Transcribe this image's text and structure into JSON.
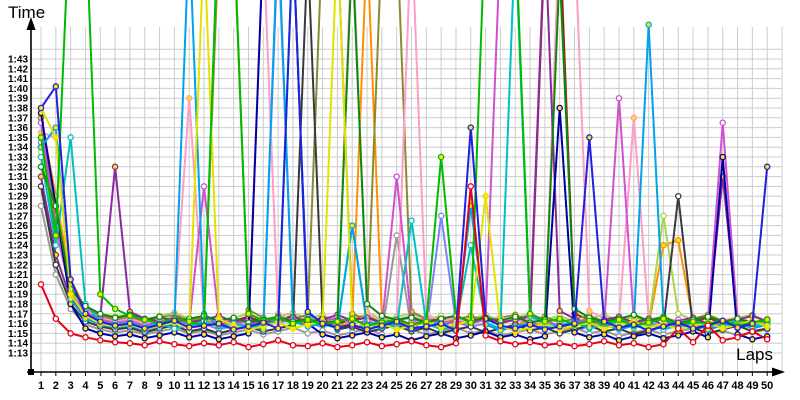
{
  "chart_data": {
    "type": "line",
    "title": "Time",
    "xlabel": "Laps",
    "grid": true,
    "background_color": "#ffffff",
    "grid_color": "#cccccc",
    "axis_color": "#000000",
    "ylim_seconds": [
      71,
      106.7
    ],
    "xticks": [
      "1",
      "2",
      "3",
      "4",
      "5",
      "6",
      "7",
      "8",
      "9",
      "10",
      "11",
      "12",
      "13",
      "14",
      "15",
      "16",
      "17",
      "18",
      "19",
      "20",
      "21",
      "22",
      "23",
      "24",
      "25",
      "26",
      "27",
      "28",
      "29",
      "30",
      "31",
      "32",
      "33",
      "34",
      "35",
      "36",
      "37",
      "38",
      "39",
      "40",
      "41",
      "42",
      "43",
      "44",
      "45",
      "46",
      "47",
      "48",
      "49",
      "50"
    ],
    "yticks": [
      "1:13",
      "1:14",
      "1:15",
      "1:16",
      "1:17",
      "1:18",
      "1:19",
      "1:20",
      "1:21",
      "1:22",
      "1:23",
      "1:24",
      "1:25",
      "1:26",
      "1:27",
      "1:28",
      "1:29",
      "1:30",
      "1:31",
      "1:32",
      "1:33",
      "1:34",
      "1:35",
      "1:36",
      "1:37",
      "1:38",
      "1:39",
      "1:40",
      "1:41",
      "1:42",
      "1:43"
    ],
    "series": [
      {
        "name": "maroon",
        "color": "#a51a1a",
        "marker_fill": "#ffe600",
        "values": [
          94.0,
          87.5,
          79.8,
          77.2,
          76.7,
          76.3,
          76.6,
          76.1,
          76.5,
          76.8,
          76.2,
          76.5,
          76.0,
          76.3,
          76.7,
          76.1,
          76.4,
          76.8,
          76.2,
          76.6,
          76.0,
          76.4,
          76.7,
          76.1,
          76.5,
          75.9,
          76.3,
          76.6,
          76.0,
          76.4,
          76.8,
          76.2,
          76.5,
          75.9,
          115.0,
          116.0,
          77.0,
          76.4,
          76.0,
          76.3,
          76.7,
          76.1,
          76.5,
          75.9,
          76.2,
          76.6,
          76.0,
          76.4,
          76.8,
          76.2
        ]
      },
      {
        "name": "periwinkle",
        "color": "#8080f8",
        "marker_fill": "#ffffff",
        "values": [
          94.5,
          86.5,
          78.8,
          76.6,
          76.1,
          75.8,
          76.0,
          75.5,
          75.9,
          76.2,
          75.6,
          76.0,
          75.4,
          75.8,
          76.1,
          75.6,
          115.0,
          76.8,
          76.0,
          75.7,
          76.1,
          75.5,
          75.9,
          76.2,
          75.6,
          76.0,
          75.3,
          87.0,
          76.1,
          75.7,
          76.0,
          75.4,
          75.8,
          76.2,
          75.6,
          75.9,
          75.3,
          75.7,
          76.1,
          75.5,
          75.8,
          76.2,
          75.6,
          76.0,
          75.4,
          75.7,
          76.1,
          75.5,
          75.9,
          76.2
        ]
      },
      {
        "name": "orange",
        "color": "#ff9000",
        "marker_fill": "#ffe600",
        "values": [
          97.0,
          89.0,
          80.5,
          77.5,
          76.5,
          76.1,
          76.3,
          75.9,
          76.2,
          76.5,
          76.0,
          76.3,
          75.8,
          76.1,
          76.4,
          75.9,
          76.2,
          76.6,
          76.0,
          76.3,
          75.7,
          76.1,
          115.0,
          76.8,
          76.2,
          75.8,
          76.1,
          76.4,
          75.9,
          76.2,
          76.6,
          76.0,
          76.4,
          75.8,
          76.1,
          76.5,
          75.9,
          76.2,
          75.6,
          76.0,
          76.3,
          75.8,
          84.0,
          84.5,
          76.2,
          75.7,
          76.0,
          76.4,
          75.8,
          76.1
        ]
      },
      {
        "name": "gray",
        "color": "#999999",
        "marker_fill": "#ffffff",
        "values": [
          88.0,
          81.0,
          77.5,
          75.9,
          75.4,
          75.1,
          75.3,
          74.9,
          75.2,
          75.5,
          75.0,
          75.3,
          74.8,
          75.1,
          75.4,
          74.9,
          75.2,
          75.6,
          75.0,
          75.3,
          74.8,
          75.1,
          75.5,
          74.9,
          85.0,
          75.4,
          74.9,
          75.2,
          75.6,
          75.0,
          75.3,
          74.8,
          75.1,
          75.4,
          74.9,
          75.2,
          75.6,
          75.0,
          75.3,
          74.7,
          75.1,
          75.4,
          74.9,
          75.2,
          75.5,
          75.0,
          75.3,
          74.8,
          75.1,
          75.4
        ]
      },
      {
        "name": "yellowgreen",
        "color": "#aad44a",
        "marker_fill": "#ffffff",
        "values": [
          93.5,
          85.5,
          79.2,
          77.6,
          77.0,
          76.7,
          76.9,
          76.4,
          76.8,
          77.1,
          76.5,
          76.8,
          76.3,
          76.6,
          77.0,
          76.4,
          76.7,
          77.1,
          76.5,
          76.9,
          76.2,
          76.6,
          76.9,
          76.3,
          76.7,
          77.0,
          76.4,
          76.8,
          76.1,
          76.5,
          76.9,
          76.3,
          76.6,
          77.0,
          76.4,
          76.8,
          76.2,
          76.5,
          76.9,
          76.3,
          76.7,
          76.0,
          87.0,
          77.0,
          76.4,
          76.8,
          76.2,
          76.6,
          76.9,
          76.3
        ]
      },
      {
        "name": "olive",
        "color": "#8a8a32",
        "marker_fill": "#ffe600",
        "values": [
          97.0,
          87.0,
          80.0,
          77.6,
          76.8,
          76.4,
          76.7,
          76.2,
          76.6,
          76.9,
          76.3,
          76.6,
          115.0,
          116.0,
          77.4,
          76.6,
          76.2,
          76.5,
          76.9,
          116.0,
          115.5,
          77.0,
          76.4,
          115.0,
          116.5,
          77.2,
          76.5,
          76.1,
          76.4,
          76.8,
          76.2,
          76.6,
          76.9,
          76.3,
          76.7,
          76.1,
          76.5,
          76.8,
          76.2,
          76.6,
          76.0,
          76.4,
          76.7,
          76.1,
          76.5,
          76.9,
          76.3,
          76.6,
          76.0,
          76.4
        ]
      },
      {
        "name": "pink",
        "color": "#ff9cc8",
        "marker_fill": "#ffe600",
        "values": [
          95.5,
          95.0,
          80.0,
          77.4,
          76.6,
          76.2,
          76.5,
          76.0,
          76.4,
          76.8,
          99.0,
          76.5,
          76.1,
          76.4,
          75.9,
          115.0,
          77.0,
          76.3,
          76.6,
          76.1,
          76.4,
          116.0,
          77.2,
          76.4,
          76.0,
          116.5,
          77.0,
          76.2,
          76.6,
          76.0,
          76.4,
          76.7,
          76.1,
          76.5,
          75.9,
          117.0,
          116.0,
          77.3,
          76.5,
          76.1,
          97.0,
          76.4,
          75.8,
          76.2,
          76.6,
          76.0,
          76.3,
          76.7,
          76.1,
          76.5
        ]
      },
      {
        "name": "purple",
        "color": "#8a2aa0",
        "marker_fill": "#ffe600",
        "values": [
          91.0,
          83.0,
          78.5,
          77.0,
          76.6,
          92.0,
          77.2,
          76.5,
          76.2,
          76.6,
          76.1,
          76.4,
          76.8,
          76.2,
          76.5,
          76.0,
          76.3,
          76.7,
          76.1,
          76.4,
          76.9,
          76.3,
          76.6,
          76.0,
          76.4,
          76.7,
          76.1,
          76.5,
          76.8,
          76.2,
          76.6,
          76.1,
          76.4,
          76.8,
          116.0,
          77.3,
          76.5,
          76.0,
          76.4,
          76.7,
          76.1,
          76.5,
          75.9,
          76.3,
          76.6,
          76.0,
          91.0,
          76.4,
          76.8,
          76.2
        ]
      },
      {
        "name": "violet",
        "color": "#d050d0",
        "marker_fill": "#ffffff",
        "values": [
          96.5,
          86.0,
          79.0,
          77.2,
          76.4,
          76.1,
          76.3,
          75.8,
          76.2,
          76.5,
          75.9,
          90.0,
          76.4,
          76.0,
          76.3,
          75.7,
          76.1,
          76.4,
          75.8,
          76.2,
          76.6,
          76.0,
          76.3,
          75.7,
          91.0,
          76.2,
          76.5,
          75.9,
          76.2,
          76.0,
          76.4,
          115.0,
          116.0,
          77.0,
          76.3,
          75.8,
          76.1,
          76.5,
          75.9,
          99.0,
          76.2,
          75.6,
          76.0,
          76.4,
          75.8,
          76.1,
          96.5,
          76.3,
          75.7,
          76.0
        ]
      },
      {
        "name": "black",
        "color": "#3a3a3a",
        "marker_fill": "#ffffff",
        "values": [
          90.0,
          82.0,
          78.0,
          76.2,
          75.7,
          75.4,
          75.6,
          75.1,
          75.5,
          75.8,
          75.2,
          75.5,
          75.0,
          75.4,
          75.7,
          75.2,
          75.5,
          75.9,
          114.0,
          76.5,
          75.4,
          75.7,
          75.1,
          75.5,
          75.8,
          75.2,
          75.6,
          75.0,
          75.4,
          75.7,
          75.1,
          75.5,
          75.9,
          75.3,
          75.6,
          75.0,
          75.4,
          75.8,
          75.2,
          75.5,
          74.9,
          75.3,
          75.7,
          89.0,
          75.6,
          75.0,
          75.4,
          75.8,
          75.2,
          75.5
        ]
      },
      {
        "name": "navy",
        "color": "#0000a0",
        "marker_fill": "#ffe600",
        "values": [
          97.5,
          88.0,
          78.0,
          75.5,
          75.0,
          74.7,
          74.9,
          74.5,
          74.8,
          75.1,
          74.6,
          74.9,
          74.4,
          74.7,
          75.0,
          115.0,
          116.0,
          115.5,
          76.0,
          74.9,
          74.5,
          74.8,
          75.1,
          74.6,
          74.9,
          74.3,
          74.7,
          75.0,
          74.5,
          74.8,
          75.2,
          74.6,
          74.9,
          74.4,
          74.7,
          98.0,
          75.1,
          74.6,
          74.9,
          74.3,
          74.7,
          75.0,
          74.5,
          74.8,
          75.2,
          74.6,
          93.0,
          74.9,
          74.4,
          74.7
        ]
      },
      {
        "name": "teal",
        "color": "#00c0c0",
        "marker_fill": "#ffffff",
        "values": [
          93.0,
          84.0,
          95.0,
          78.0,
          76.2,
          75.9,
          76.1,
          75.6,
          76.0,
          75.5,
          75.8,
          76.2,
          75.7,
          76.0,
          75.5,
          75.9,
          76.3,
          115.0,
          77.0,
          76.0,
          75.6,
          86.0,
          75.9,
          76.2,
          75.6,
          86.5,
          76.0,
          75.4,
          75.8,
          84.0,
          76.1,
          75.5,
          115.5,
          76.8,
          76.0,
          75.7,
          76.1,
          75.5,
          75.9,
          76.2,
          75.6,
          76.0,
          75.4,
          75.8,
          76.1,
          75.6,
          75.9,
          76.3,
          75.7,
          76.0
        ]
      },
      {
        "name": "skyblue",
        "color": "#00a2e8",
        "marker_fill": "#ffe600",
        "values": [
          94.0,
          96.0,
          78.5,
          76.5,
          75.9,
          75.6,
          75.8,
          75.3,
          75.7,
          76.0,
          116.0,
          77.0,
          75.8,
          75.5,
          75.9,
          75.4,
          116.5,
          76.2,
          75.7,
          76.0,
          75.5,
          86.0,
          75.9,
          75.6,
          76.0,
          75.4,
          75.8,
          76.1,
          75.5,
          88.0,
          75.9,
          75.3,
          75.7,
          76.0,
          75.5,
          75.8,
          76.2,
          75.6,
          75.9,
          75.4,
          75.8,
          106.5,
          76.5,
          75.7,
          76.0,
          75.4,
          75.8,
          76.1,
          75.5,
          75.9
        ]
      },
      {
        "name": "darkgreen",
        "color": "#0a8a0a",
        "marker_fill": "#ffffff",
        "values": [
          92.0,
          88.0,
          79.5,
          77.8,
          77.0,
          76.6,
          76.9,
          76.4,
          76.7,
          76.2,
          76.5,
          76.8,
          76.3,
          76.6,
          76.1,
          76.4,
          76.7,
          76.2,
          76.5,
          76.0,
          76.3,
          114.0,
          78.0,
          76.8,
          76.4,
          76.6,
          76.1,
          76.5,
          76.8,
          76.2,
          76.6,
          76.3,
          76.7,
          76.1,
          76.4,
          112.0,
          77.5,
          76.6,
          76.2,
          76.5,
          76.9,
          76.3,
          76.6,
          76.0,
          76.4,
          76.7,
          76.2,
          76.5,
          76.1,
          76.4
        ]
      },
      {
        "name": "yellow",
        "color": "#e2e200",
        "marker_fill": "#ffe600",
        "values": [
          98.0,
          95.0,
          79.0,
          76.8,
          76.0,
          75.7,
          75.9,
          75.4,
          75.8,
          76.1,
          75.5,
          115.0,
          76.5,
          75.8,
          75.4,
          75.7,
          76.1,
          75.5,
          75.9,
          76.2,
          115.5,
          76.3,
          75.7,
          76.0,
          75.4,
          75.8,
          76.2,
          75.6,
          75.9,
          76.3,
          89.0,
          75.8,
          75.2,
          75.6,
          76.0,
          75.4,
          75.8,
          76.1,
          75.5,
          75.9,
          76.2,
          75.6,
          76.0,
          75.4,
          75.8,
          76.1,
          75.5,
          75.9,
          76.3,
          75.7
        ]
      },
      {
        "name": "green",
        "color": "#00bb00",
        "marker_fill": "#ffe600",
        "values": [
          95.0,
          85.0,
          120.0,
          118.0,
          79.0,
          77.5,
          76.8,
          76.4,
          76.0,
          76.5,
          76.2,
          75.8,
          119.0,
          117.0,
          77.0,
          76.3,
          76.6,
          76.0,
          76.4,
          75.9,
          76.2,
          76.5,
          75.8,
          76.1,
          76.4,
          75.9,
          76.2,
          93.0,
          76.8,
          76.1,
          118.0,
          120.0,
          117.0,
          77.0,
          76.2,
          76.5,
          75.9,
          76.3,
          76.0,
          76.4,
          75.8,
          76.1,
          76.5,
          75.9,
          76.2,
          76.0,
          76.3,
          75.8,
          76.1,
          76.4
        ]
      },
      {
        "name": "blue",
        "color": "#2020dd",
        "marker_fill": "#ffe600",
        "values": [
          98.0,
          100.2,
          80.5,
          77.0,
          76.2,
          75.8,
          76.0,
          75.5,
          75.9,
          76.3,
          75.6,
          75.8,
          76.0,
          75.4,
          75.7,
          76.1,
          75.5,
          115.0,
          77.2,
          76.0,
          75.6,
          75.9,
          75.4,
          75.8,
          76.2,
          75.5,
          75.7,
          76.0,
          75.3,
          96.0,
          76.5,
          75.8,
          75.5,
          75.9,
          75.4,
          75.7,
          76.0,
          95.0,
          76.2,
          75.6,
          75.9,
          75.3,
          75.7,
          76.1,
          75.5,
          75.8,
          76.3,
          75.6,
          76.0,
          92.0
        ]
      },
      {
        "name": "red",
        "color": "#e60012",
        "marker_fill": "#ffffff",
        "values": [
          80.0,
          76.5,
          75.0,
          74.6,
          74.3,
          74.1,
          74.0,
          73.8,
          74.2,
          73.9,
          73.7,
          74.0,
          73.8,
          74.1,
          73.6,
          73.9,
          74.3,
          73.8,
          73.7,
          74.0,
          73.6,
          73.8,
          74.1,
          73.7,
          73.9,
          74.2,
          73.8,
          73.6,
          74.0,
          90.0,
          74.8,
          74.2,
          73.9,
          74.1,
          73.8,
          74.0,
          73.7,
          73.9,
          74.2,
          73.8,
          74.0,
          73.6,
          73.9,
          75.5,
          74.1,
          75.8,
          74.3,
          74.6,
          75.2,
          74.4
        ]
      }
    ]
  }
}
